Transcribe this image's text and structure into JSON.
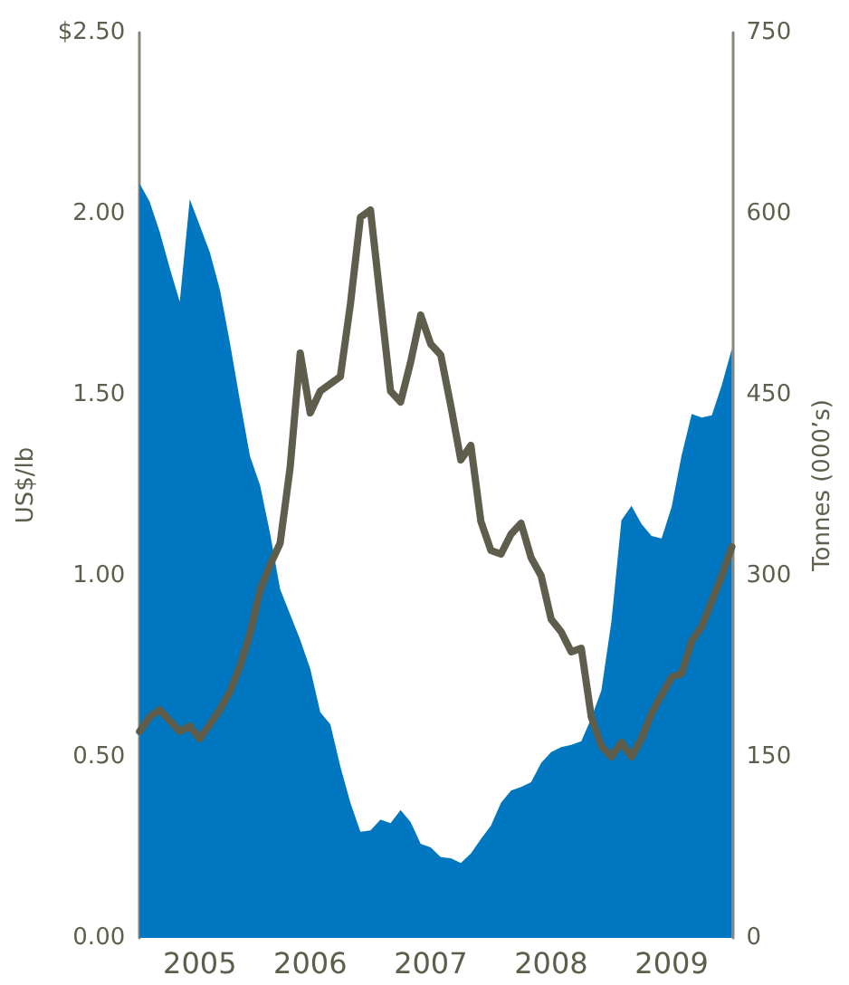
{
  "chart_data": {
    "type": "line",
    "ylabel": "US$/lb",
    "y2label": "Tonnes (000’s)",
    "categories": [
      null,
      null,
      null,
      null,
      null,
      null,
      "2005",
      null,
      null,
      null,
      null,
      null,
      null,
      null,
      null,
      null,
      null,
      "2006",
      null,
      null,
      null,
      null,
      null,
      null,
      null,
      null,
      null,
      null,
      null,
      "2007",
      null,
      null,
      null,
      null,
      null,
      null,
      null,
      null,
      null,
      null,
      null,
      "2008",
      null,
      null,
      null,
      null,
      null,
      null,
      null,
      null,
      null,
      null,
      null,
      "2009",
      null,
      null,
      null,
      null,
      null,
      null
    ],
    "series": [
      {
        "type": "area",
        "axis": "y2",
        "color": "#0077c0",
        "values": [
          625,
          610,
          585,
          555,
          527,
          612,
          590,
          568,
          537,
          493,
          445,
          399,
          375,
          335,
          289,
          268,
          247,
          223,
          187,
          177,
          142,
          112,
          88,
          89,
          98,
          95,
          106,
          96,
          78,
          75,
          67,
          66,
          62,
          70,
          82,
          93,
          112,
          122,
          125,
          129,
          145,
          154,
          158,
          160,
          163,
          182,
          205,
          262,
          346,
          358,
          343,
          333,
          331,
          357,
          400,
          434,
          431,
          433,
          458,
          488
        ]
      },
      {
        "type": "line",
        "color": "#5f5e4c",
        "values": [
          0.57,
          0.61,
          0.63,
          0.6,
          0.57,
          0.585,
          0.55,
          0.59,
          0.63,
          0.68,
          0.75,
          0.84,
          0.96,
          1.03,
          1.09,
          1.3,
          1.615,
          1.45,
          1.51,
          1.53,
          1.55,
          1.75,
          1.99,
          2.01,
          1.76,
          1.51,
          1.48,
          1.59,
          1.72,
          1.64,
          1.61,
          1.47,
          1.32,
          1.36,
          1.15,
          1.07,
          1.06,
          1.115,
          1.145,
          1.05,
          1.0,
          0.88,
          0.845,
          0.79,
          0.8,
          0.61,
          0.53,
          0.5,
          0.54,
          0.5,
          0.55,
          0.62,
          0.67,
          0.72,
          0.73,
          0.82,
          0.86,
          0.93,
          1.0,
          1.08
        ]
      }
    ],
    "ylim": [
      0,
      2.5
    ],
    "yticks": [
      {
        "value": 0,
        "label": "0.00"
      },
      {
        "value": 0.5,
        "label": "0.50"
      },
      {
        "value": 1,
        "label": "1.00"
      },
      {
        "value": 1.5,
        "label": "1.50"
      },
      {
        "value": 2,
        "label": "2.00"
      },
      {
        "value": 2.5,
        "label": "$2.50"
      }
    ],
    "y2lim": [
      0,
      750
    ],
    "y2ticks": [
      0,
      150,
      300,
      450,
      600,
      750
    ],
    "grid": false,
    "marker": "none",
    "line_style": "solid"
  }
}
